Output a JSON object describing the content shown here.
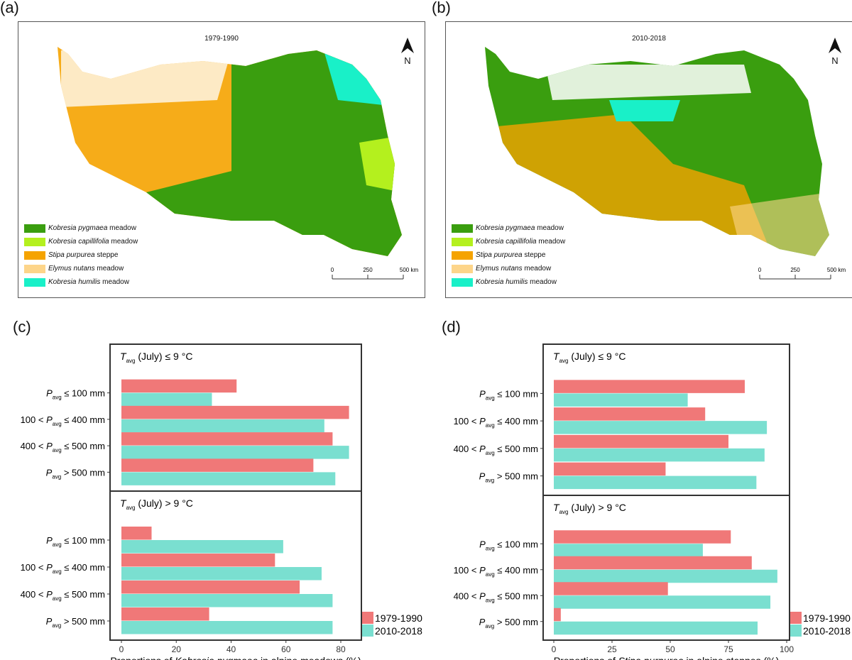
{
  "panels": {
    "a": {
      "label": "(a)",
      "title": "1979-1990",
      "north": "N"
    },
    "b": {
      "label": "(b)",
      "title": "2010-2018",
      "north": "N"
    },
    "c": {
      "label": "(c)"
    },
    "d": {
      "label": "(d)"
    }
  },
  "map_legend": [
    {
      "species": "Kobresia pygmaea",
      "type": " meadow",
      "color": "#3a9e0f"
    },
    {
      "species": "Kobresia capillifolia",
      "type": " meadow",
      "color": "#b4f01e"
    },
    {
      "species": "Stipa purpurea",
      "type": " steppe",
      "color": "#f5a300"
    },
    {
      "species": "Elymus nutans",
      "type": " meadow",
      "color": "#fdd58a"
    },
    {
      "species": "Kobresia humilis",
      "type": " meadow",
      "color": "#19f0c8"
    }
  ],
  "scale_bar": {
    "ticks": [
      "0",
      "250",
      "500 km"
    ]
  },
  "colors": {
    "period1": "#f07878",
    "period2": "#7adfd0"
  },
  "chart_data": [
    {
      "type": "bar",
      "orientation": "horizontal",
      "xlabel_pre": "Proportions of ",
      "xlabel_italic": "Kobresia pygmaea",
      "xlabel_post": " in alpine meadows (%)",
      "xlim": [
        0,
        85
      ],
      "xticks": [
        0,
        20,
        40,
        60,
        80
      ],
      "legend": [
        "1979-1990",
        "2010-2018"
      ],
      "legend_position": "bottom-right",
      "categories": [
        {
          "pre": "",
          "var": "P",
          "sub": "avg",
          "post": " ≤ 100 mm"
        },
        {
          "pre": "100 < ",
          "var": "P",
          "sub": "avg",
          "post": " ≤ 400 mm"
        },
        {
          "pre": "400 < ",
          "var": "P",
          "sub": "avg",
          "post": " ≤ 500 mm"
        },
        {
          "pre": "",
          "var": "P",
          "sub": "avg",
          "post": " > 500 mm"
        }
      ],
      "facets": [
        {
          "var": "T",
          "sub": "avg",
          "post": " (July) ≤ 9 °C",
          "series": [
            {
              "name": "1979-1990",
              "values": [
                42,
                83,
                77,
                70
              ]
            },
            {
              "name": "2010-2018",
              "values": [
                33,
                74,
                83,
                78
              ]
            }
          ]
        },
        {
          "var": "T",
          "sub": "avg",
          "post": " (July) > 9 °C",
          "series": [
            {
              "name": "1979-1990",
              "values": [
                11,
                56,
                65,
                32
              ]
            },
            {
              "name": "2010-2018",
              "values": [
                59,
                73,
                77,
                77
              ]
            }
          ]
        }
      ]
    },
    {
      "type": "bar",
      "orientation": "horizontal",
      "xlabel_pre": "Proportions of ",
      "xlabel_italic": "Stipa purpurea",
      "xlabel_post": " in alpine steppes (%)",
      "xlim": [
        0,
        100
      ],
      "xticks": [
        0,
        25,
        50,
        75,
        100
      ],
      "legend": [
        "1979-1990",
        "2010-2018"
      ],
      "legend_position": "bottom-right",
      "categories": [
        {
          "pre": "",
          "var": "P",
          "sub": "avg",
          "post": " ≤ 100 mm"
        },
        {
          "pre": "100 < ",
          "var": "P",
          "sub": "avg",
          "post": " ≤ 400 mm"
        },
        {
          "pre": "400 < ",
          "var": "P",
          "sub": "avg",
          "post": " ≤ 500 mm"
        },
        {
          "pre": "",
          "var": "P",
          "sub": "avg",
          "post": " > 500 mm"
        }
      ],
      "facets": [
        {
          "var": "T",
          "sub": "avg",
          "post": " (July) ≤ 9 °C",
          "series": [
            {
              "name": "1979-1990",
              "values": [
                82,
                65,
                75,
                48
              ]
            },
            {
              "name": "2010-2018",
              "values": [
                57.5,
                91.5,
                90.5,
                87
              ]
            }
          ]
        },
        {
          "var": "T",
          "sub": "avg",
          "post": " (July) > 9 °C",
          "series": [
            {
              "name": "1979-1990",
              "values": [
                76,
                85,
                49,
                3
              ]
            },
            {
              "name": "2010-2018",
              "values": [
                64,
                96,
                93,
                87.5
              ]
            }
          ]
        }
      ]
    }
  ]
}
